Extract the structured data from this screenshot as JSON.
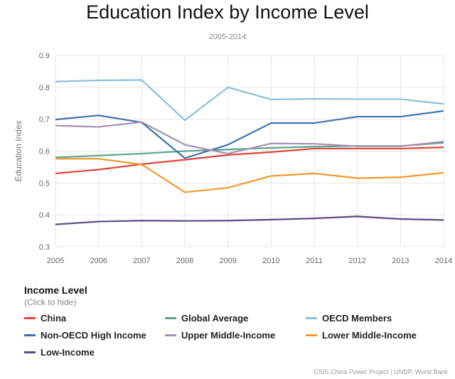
{
  "chart_data": {
    "type": "line",
    "title": "Education Index by Income Level",
    "subtitle": "2005-2014",
    "xlabel": "",
    "ylabel": "Education Index",
    "x": [
      2005,
      2006,
      2007,
      2008,
      2009,
      2010,
      2011,
      2012,
      2013,
      2014
    ],
    "ylim": [
      0.3,
      0.9
    ],
    "yticks": [
      "0.3",
      "0.4",
      "0.5",
      "0.6",
      "0.7",
      "0.8",
      "0.9"
    ],
    "grid": true,
    "legend_title": "Income Level",
    "legend_hint": "(Click to hide)",
    "legend_placement": "bottom",
    "series": [
      {
        "name": "China",
        "color": "#e0453a",
        "values": [
          0.53,
          0.542,
          0.559,
          0.573,
          0.588,
          0.597,
          0.608,
          0.608,
          0.608,
          0.612
        ]
      },
      {
        "name": "Global Average",
        "color": "#5aa68a",
        "values": [
          0.58,
          0.586,
          0.592,
          0.6,
          0.605,
          0.61,
          0.614,
          0.616,
          0.616,
          0.626
        ]
      },
      {
        "name": "OECD Members",
        "color": "#8bbfdc",
        "values": [
          0.818,
          0.822,
          0.823,
          0.697,
          0.8,
          0.762,
          0.764,
          0.763,
          0.763,
          0.748
        ]
      },
      {
        "name": "Non-OECD High Income",
        "color": "#3d72b0",
        "values": [
          0.699,
          0.712,
          0.69,
          0.578,
          0.62,
          0.688,
          0.688,
          0.708,
          0.708,
          0.726
        ]
      },
      {
        "name": "Upper Middle-Income",
        "color": "#a590b0",
        "values": [
          0.68,
          0.676,
          0.691,
          0.62,
          0.592,
          0.624,
          0.623,
          0.615,
          0.615,
          0.63
        ]
      },
      {
        "name": "Lower Middle-Income",
        "color": "#f29a2e",
        "values": [
          0.576,
          0.576,
          0.558,
          0.471,
          0.485,
          0.522,
          0.53,
          0.515,
          0.518,
          0.532
        ]
      },
      {
        "name": "Low-Income",
        "color": "#5e4a85",
        "values": [
          0.37,
          0.379,
          0.382,
          0.381,
          0.382,
          0.385,
          0.389,
          0.395,
          0.387,
          0.384
        ]
      }
    ]
  },
  "source": "CSIS China Power Project | UNDP, World Bank"
}
